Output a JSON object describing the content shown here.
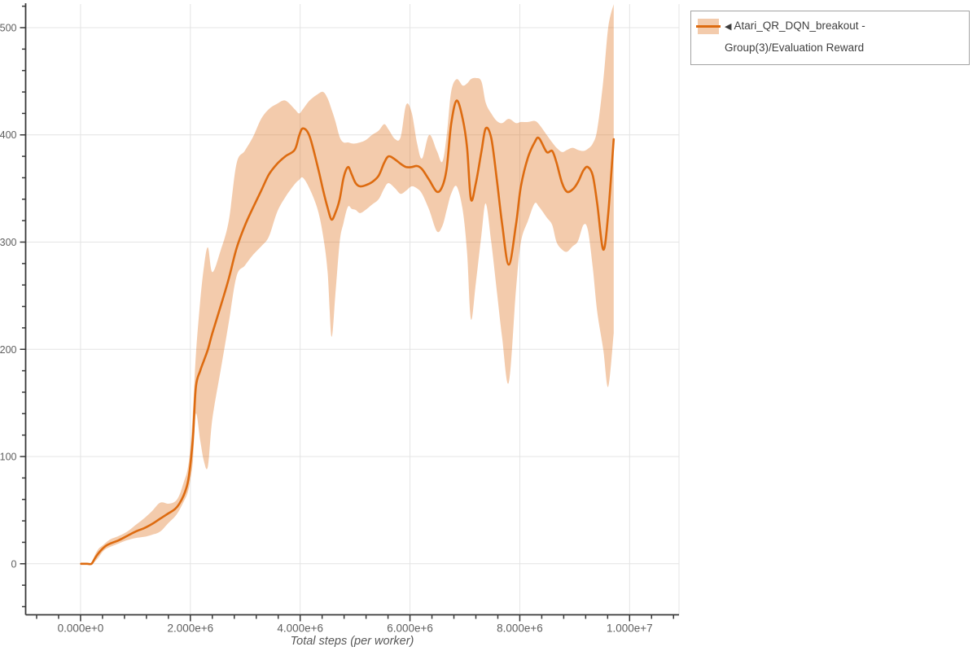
{
  "legend": {
    "collapse_icon": "◀",
    "label": "Atari_QR_DQN_breakout - Group(3)/Evaluation Reward"
  },
  "axis": {
    "x_label": "Total steps (per worker)"
  },
  "colors": {
    "line": "#dd6b10",
    "band": "rgba(221,107,16,0.35)",
    "grid": "#e4e4e4",
    "axis": "#383838",
    "tick_label": "#5f5f5f"
  },
  "chart_data": {
    "type": "line",
    "title": "",
    "xlabel": "Total steps (per worker)",
    "ylabel": "",
    "legend_position": "top-right outside",
    "grid": true,
    "xlim": [
      -1000000,
      10900000
    ],
    "ylim": [
      -47.6,
      522
    ],
    "x_ticks": [
      {
        "value": 0,
        "label": "0.000e+0"
      },
      {
        "value": 2000000,
        "label": "2.000e+6"
      },
      {
        "value": 4000000,
        "label": "4.000e+6"
      },
      {
        "value": 6000000,
        "label": "6.000e+6"
      },
      {
        "value": 8000000,
        "label": "8.000e+6"
      },
      {
        "value": 10000000,
        "label": "1.000e+7"
      }
    ],
    "x_minor_step": 400000,
    "y_ticks": [
      {
        "value": 0,
        "label": "0"
      },
      {
        "value": 100,
        "label": "100"
      },
      {
        "value": 200,
        "label": "200"
      },
      {
        "value": 300,
        "label": "300"
      },
      {
        "value": 400,
        "label": "400"
      },
      {
        "value": 500,
        "label": "500"
      }
    ],
    "y_minor_step": 20,
    "series": [
      {
        "name": "Atari_QR_DQN_breakout - Group(3)/Evaluation Reward",
        "x_scale": 1000000,
        "x": [
          0.01,
          0.12,
          0.2,
          0.26,
          0.33,
          0.4,
          0.47,
          0.55,
          0.7,
          0.85,
          1.0,
          1.15,
          1.3,
          1.45,
          1.6,
          1.72,
          1.8,
          1.88,
          1.95,
          2.0,
          2.05,
          2.1,
          2.18,
          2.25,
          2.32,
          2.4,
          2.55,
          2.7,
          2.84,
          2.99,
          3.14,
          3.29,
          3.43,
          3.58,
          3.73,
          3.9,
          3.98,
          4.05,
          4.17,
          4.32,
          4.42,
          4.5,
          4.57,
          4.64,
          4.72,
          4.79,
          4.87,
          4.94,
          5.01,
          5.09,
          5.19,
          5.31,
          5.43,
          5.53,
          5.61,
          5.73,
          5.83,
          5.93,
          6.03,
          6.13,
          6.22,
          6.35,
          6.49,
          6.59,
          6.67,
          6.75,
          6.85,
          6.96,
          7.04,
          7.11,
          7.2,
          7.3,
          7.38,
          7.48,
          7.58,
          7.68,
          7.8,
          7.93,
          8.02,
          8.15,
          8.27,
          8.35,
          8.49,
          8.59,
          8.67,
          8.77,
          8.86,
          8.96,
          9.06,
          9.16,
          9.24,
          9.33,
          9.41,
          9.52,
          9.61,
          9.71
        ],
        "mean": [
          0,
          0,
          0,
          5,
          10,
          14,
          17,
          19,
          22,
          26,
          30,
          33,
          37,
          42,
          47,
          51,
          56,
          64,
          75,
          92,
          120,
          165,
          180,
          190,
          200,
          215,
          240,
          266,
          294,
          315,
          332,
          348,
          363,
          373,
          380,
          386,
          399,
          406,
          399,
          370,
          348,
          332,
          321,
          327,
          340,
          360,
          370,
          363,
          355,
          352,
          353,
          356,
          362,
          374,
          380,
          377,
          373,
          370,
          370,
          371,
          368,
          358,
          347,
          352,
          369,
          410,
          432,
          415,
          388,
          340,
          355,
          384,
          406,
          397,
          359,
          316,
          279,
          316,
          352,
          379,
          393,
          397,
          384,
          385,
          374,
          355,
          347,
          349,
          356,
          367,
          370,
          362,
          336,
          293,
          326,
          396
        ],
        "lower": [
          0,
          0,
          0,
          2,
          6,
          11,
          14,
          16,
          19,
          22,
          24,
          25,
          27,
          30,
          38,
          44,
          50,
          58,
          66,
          78,
          98,
          140,
          115,
          95,
          91,
          135,
          180,
          225,
          268,
          278,
          288,
          296,
          305,
          328,
          342,
          354,
          358,
          360,
          350,
          330,
          305,
          272,
          212,
          250,
          300,
          318,
          333,
          331,
          330,
          327,
          330,
          335,
          340,
          350,
          355,
          350,
          345,
          348,
          352,
          350,
          345,
          330,
          310,
          315,
          330,
          345,
          352,
          330,
          290,
          228,
          262,
          306,
          336,
          300,
          255,
          210,
          169,
          255,
          300,
          320,
          336,
          333,
          323,
          316,
          300,
          293,
          291,
          296,
          301,
          316,
          311,
          276,
          235,
          200,
          165,
          215
        ],
        "upper": [
          0,
          0,
          0,
          8,
          14,
          17,
          20,
          23,
          26,
          30,
          36,
          42,
          49,
          57,
          56,
          58,
          64,
          76,
          88,
          108,
          145,
          195,
          245,
          278,
          295,
          272,
          292,
          320,
          373,
          385,
          398,
          415,
          424,
          429,
          432,
          424,
          420,
          424,
          432,
          438,
          440,
          434,
          424,
          413,
          398,
          393,
          393,
          392,
          392,
          393,
          395,
          400,
          404,
          410,
          405,
          396,
          398,
          428,
          421,
          392,
          378,
          400,
          385,
          375,
          400,
          440,
          452,
          446,
          448,
          452,
          453,
          450,
          430,
          420,
          413,
          411,
          415,
          411,
          412,
          412,
          413,
          410,
          400,
          393,
          388,
          384,
          386,
          388,
          386,
          385,
          387,
          392,
          405,
          450,
          500,
          522
        ]
      }
    ]
  }
}
